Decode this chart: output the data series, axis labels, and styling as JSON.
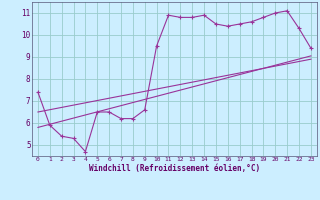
{
  "xlabel": "Windchill (Refroidissement éolien,°C)",
  "background_color": "#cceeff",
  "grid_color": "#99cccc",
  "line_color": "#993399",
  "text_color": "#660066",
  "spine_color": "#555577",
  "xlim": [
    -0.5,
    23.5
  ],
  "ylim": [
    4.5,
    11.5
  ],
  "xticks": [
    0,
    1,
    2,
    3,
    4,
    5,
    6,
    7,
    8,
    9,
    10,
    11,
    12,
    13,
    14,
    15,
    16,
    17,
    18,
    19,
    20,
    21,
    22,
    23
  ],
  "yticks": [
    5,
    6,
    7,
    8,
    9,
    10,
    11
  ],
  "data_line": [
    [
      0,
      7.4
    ],
    [
      1,
      5.9
    ],
    [
      2,
      5.4
    ],
    [
      3,
      5.3
    ],
    [
      4,
      4.7
    ],
    [
      5,
      6.5
    ],
    [
      6,
      6.5
    ],
    [
      7,
      6.2
    ],
    [
      8,
      6.2
    ],
    [
      9,
      6.6
    ],
    [
      10,
      9.5
    ],
    [
      11,
      10.9
    ],
    [
      12,
      10.8
    ],
    [
      13,
      10.8
    ],
    [
      14,
      10.9
    ],
    [
      15,
      10.5
    ],
    [
      16,
      10.4
    ],
    [
      17,
      10.5
    ],
    [
      18,
      10.6
    ],
    [
      19,
      10.8
    ],
    [
      20,
      11.0
    ],
    [
      21,
      11.1
    ],
    [
      22,
      10.3
    ],
    [
      23,
      9.4
    ]
  ],
  "regression_line1": [
    [
      0,
      5.8
    ],
    [
      23,
      9.05
    ]
  ],
  "regression_line2": [
    [
      0,
      6.5
    ],
    [
      23,
      8.9
    ]
  ]
}
